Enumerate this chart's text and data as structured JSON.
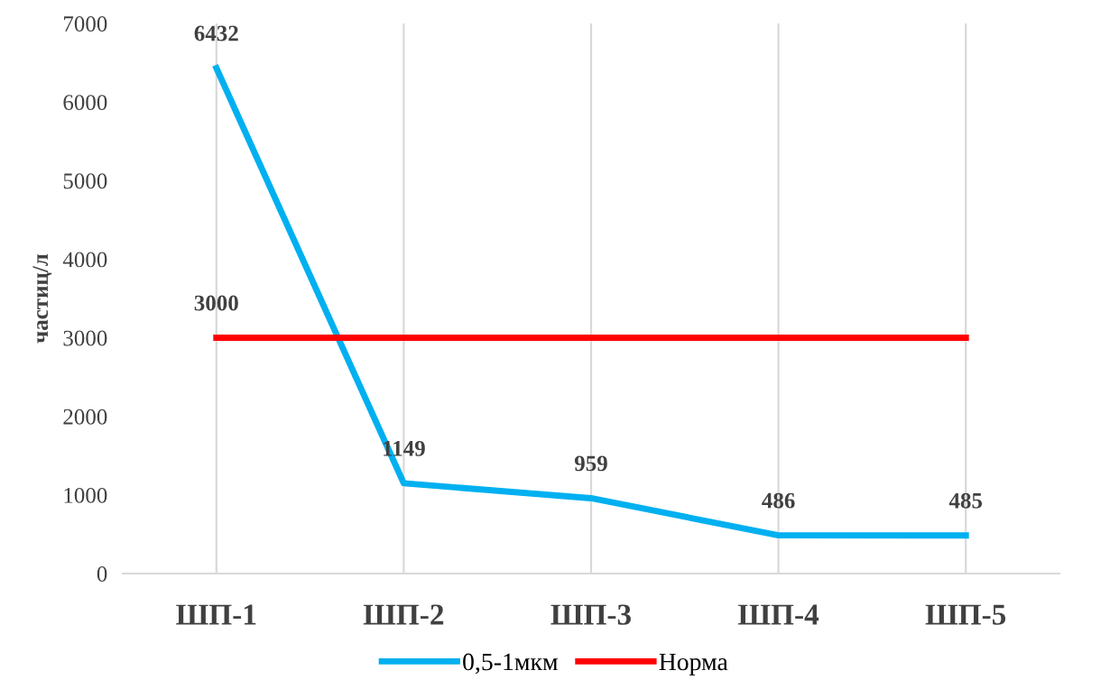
{
  "chart_data": {
    "type": "line",
    "ylabel": "частиц/л",
    "categories": [
      "ШП-1",
      "ШП-2",
      "ШП-3",
      "ШП-4",
      "ШП-5"
    ],
    "series": [
      {
        "name": "0,5-1мкм",
        "color": "#00b0f0",
        "values": [
          6432,
          1149,
          959,
          486,
          485
        ],
        "value_labels": [
          "6432",
          "1149",
          "959",
          "486",
          "485"
        ]
      },
      {
        "name": "Норма",
        "color": "#ff0000",
        "values": [
          3000,
          3000,
          3000,
          3000,
          3000
        ],
        "value_labels": [
          "3000",
          null,
          null,
          null,
          null
        ]
      }
    ],
    "ylim": [
      0,
      7000
    ],
    "yticks": [
      0,
      1000,
      2000,
      3000,
      4000,
      5000,
      6000,
      7000
    ],
    "grid": "x",
    "legend": "bottom",
    "marker": "none",
    "line_style": "solid"
  }
}
